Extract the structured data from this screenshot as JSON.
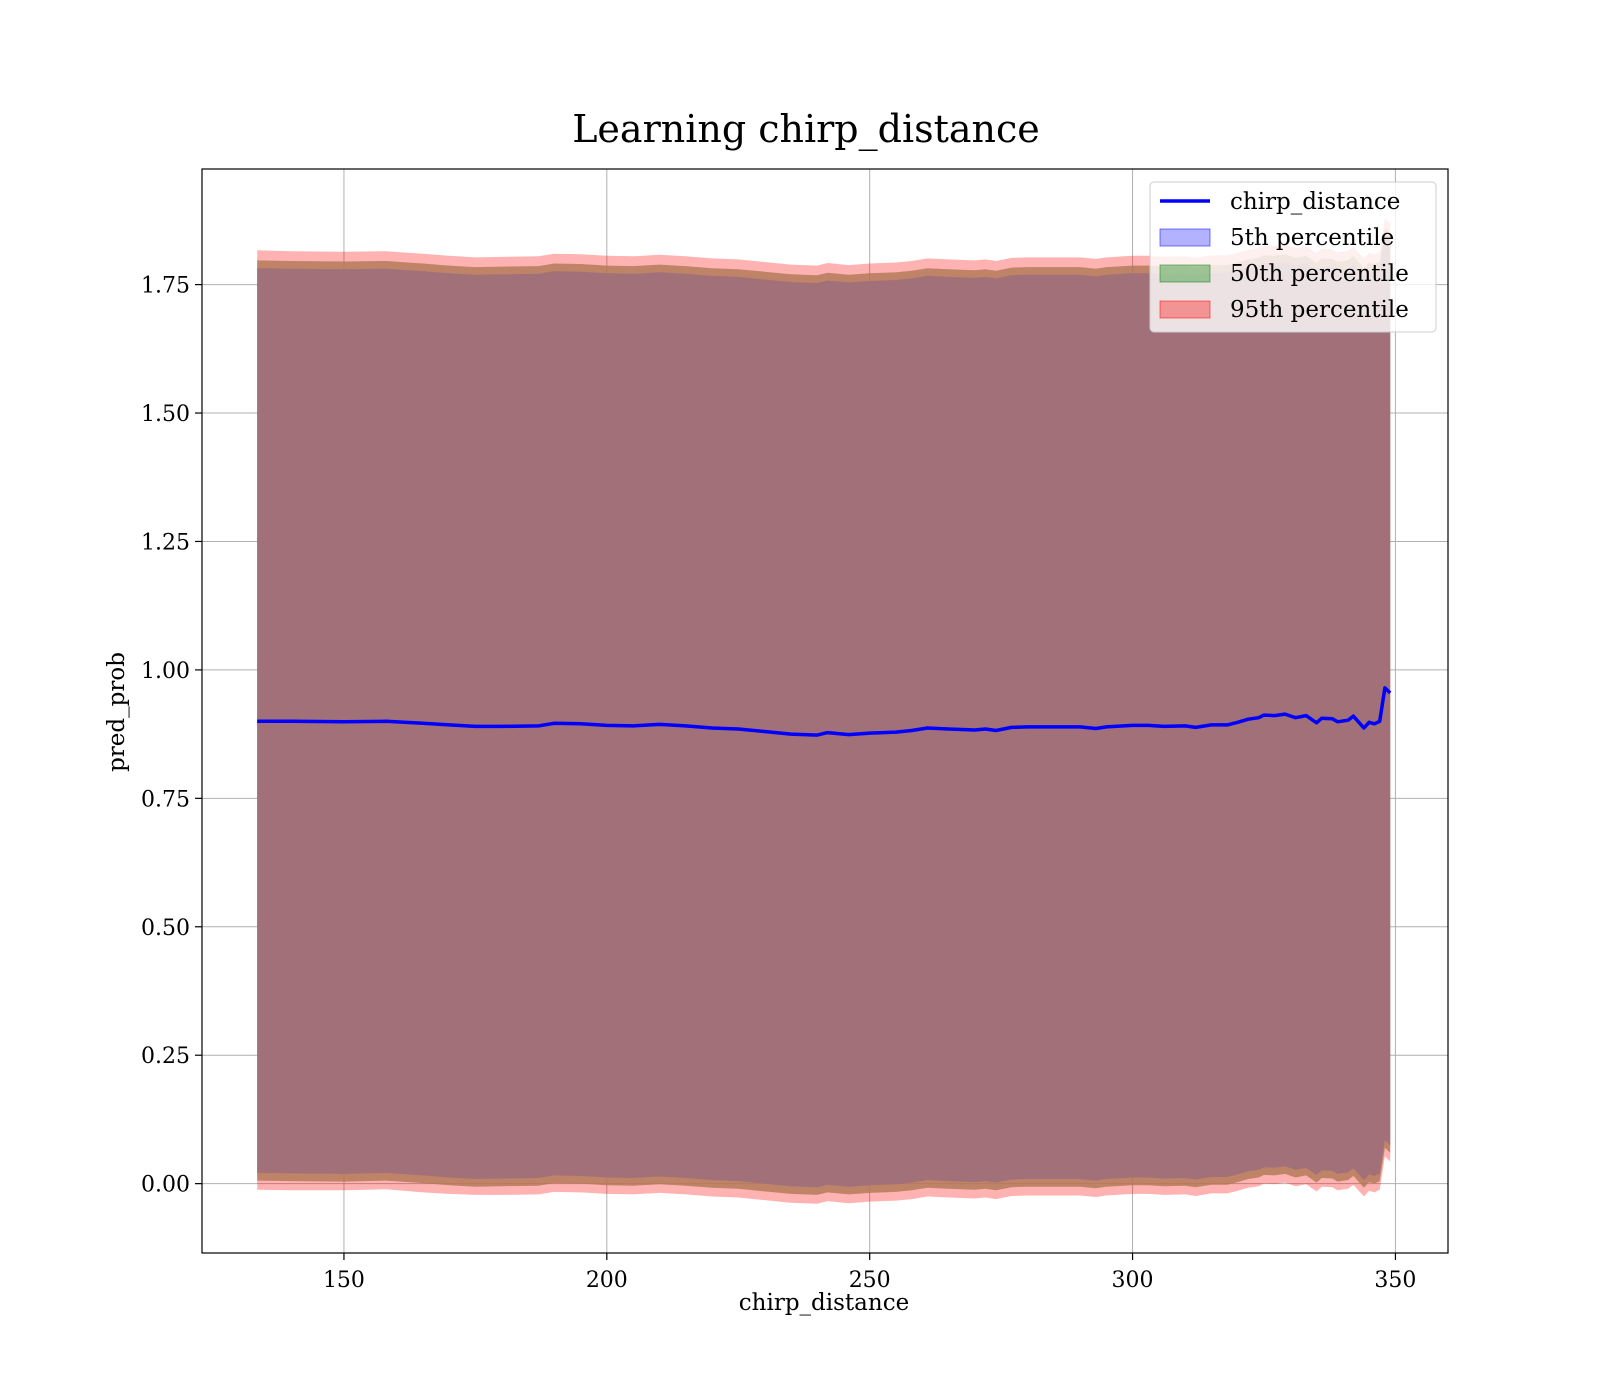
{
  "chart_data": {
    "type": "area",
    "title": "Learning chirp_distance",
    "xlabel": "chirp_distance",
    "ylabel": "pred_prob",
    "xlim": [
      123,
      360
    ],
    "ylim": [
      -0.135,
      1.975
    ],
    "xticks": [
      150,
      200,
      250,
      300,
      350
    ],
    "xtick_labels": [
      "150",
      "200",
      "250",
      "300",
      "350"
    ],
    "yticks": [
      0.0,
      0.25,
      0.5,
      0.75,
      1.0,
      1.25,
      1.5,
      1.75
    ],
    "ytick_labels": [
      "0.00",
      "0.25",
      "0.50",
      "0.75",
      "1.00",
      "1.25",
      "1.50",
      "1.75"
    ],
    "grid": true,
    "legend_position": "top-right",
    "legend": [
      "chirp_distance",
      "5th percentile",
      "50th percentile",
      "95th percentile"
    ],
    "colors": {
      "line": "#0000ff",
      "band_5": "#0000ff",
      "band_50": "#008000",
      "band_95": "#ff0000",
      "band_core": "#a17079"
    },
    "x": [
      133.5,
      140,
      150,
      158,
      165,
      170,
      175,
      180,
      187,
      190,
      195,
      200,
      205,
      210,
      215,
      220,
      225,
      230,
      235,
      240,
      242,
      246,
      250,
      255,
      258,
      261,
      265,
      270,
      272,
      274,
      277,
      280,
      285,
      290,
      293,
      295,
      300,
      303,
      306,
      310,
      312,
      315,
      318,
      320,
      322,
      324,
      325,
      327,
      329,
      331,
      333,
      335,
      336,
      338,
      339,
      341,
      342,
      344,
      345,
      346,
      347,
      348,
      349
    ],
    "series": [
      {
        "name": "chirp_distance",
        "values": [
          0.9,
          0.9,
          0.899,
          0.9,
          0.896,
          0.893,
          0.89,
          0.89,
          0.891,
          0.896,
          0.895,
          0.892,
          0.891,
          0.894,
          0.891,
          0.887,
          0.885,
          0.88,
          0.875,
          0.873,
          0.878,
          0.874,
          0.877,
          0.879,
          0.882,
          0.887,
          0.885,
          0.883,
          0.885,
          0.882,
          0.888,
          0.889,
          0.889,
          0.889,
          0.886,
          0.889,
          0.892,
          0.892,
          0.89,
          0.891,
          0.888,
          0.893,
          0.893,
          0.898,
          0.904,
          0.907,
          0.912,
          0.911,
          0.914,
          0.907,
          0.911,
          0.897,
          0.906,
          0.905,
          0.899,
          0.902,
          0.91,
          0.887,
          0.898,
          0.895,
          0.9,
          0.965,
          0.955
        ]
      }
    ],
    "bands": [
      {
        "name": "95th percentile",
        "upper": [
          1.817,
          1.815,
          1.814,
          1.815,
          1.81,
          1.806,
          1.803,
          1.804,
          1.805,
          1.81,
          1.809,
          1.806,
          1.805,
          1.808,
          1.805,
          1.801,
          1.799,
          1.794,
          1.789,
          1.787,
          1.792,
          1.788,
          1.791,
          1.793,
          1.796,
          1.801,
          1.799,
          1.797,
          1.799,
          1.796,
          1.802,
          1.803,
          1.803,
          1.803,
          1.8,
          1.803,
          1.806,
          1.806,
          1.804,
          1.805,
          1.802,
          1.807,
          1.807,
          1.812,
          1.818,
          1.821,
          1.826,
          1.825,
          1.828,
          1.821,
          1.825,
          1.811,
          1.82,
          1.819,
          1.813,
          1.816,
          1.824,
          1.801,
          1.812,
          1.809,
          1.814,
          1.879,
          1.869
        ],
        "lower": [
          -0.012,
          -0.013,
          -0.013,
          -0.011,
          -0.017,
          -0.02,
          -0.022,
          -0.022,
          -0.021,
          -0.016,
          -0.017,
          -0.02,
          -0.021,
          -0.018,
          -0.021,
          -0.025,
          -0.027,
          -0.032,
          -0.037,
          -0.039,
          -0.034,
          -0.038,
          -0.035,
          -0.033,
          -0.03,
          -0.025,
          -0.027,
          -0.029,
          -0.027,
          -0.03,
          -0.024,
          -0.023,
          -0.023,
          -0.023,
          -0.026,
          -0.023,
          -0.02,
          -0.02,
          -0.022,
          -0.021,
          -0.024,
          -0.019,
          -0.019,
          -0.014,
          -0.008,
          -0.005,
          0.0,
          -0.001,
          0.002,
          -0.005,
          -0.001,
          -0.015,
          -0.006,
          -0.007,
          -0.013,
          -0.01,
          -0.002,
          -0.025,
          -0.014,
          -0.017,
          -0.012,
          0.053,
          0.043
        ]
      },
      {
        "name": "50th percentile",
        "upper": [
          1.797,
          1.796,
          1.795,
          1.796,
          1.791,
          1.787,
          1.784,
          1.785,
          1.786,
          1.791,
          1.79,
          1.787,
          1.786,
          1.789,
          1.786,
          1.782,
          1.78,
          1.775,
          1.77,
          1.768,
          1.773,
          1.769,
          1.772,
          1.774,
          1.777,
          1.782,
          1.78,
          1.778,
          1.78,
          1.777,
          1.783,
          1.784,
          1.784,
          1.784,
          1.781,
          1.784,
          1.787,
          1.787,
          1.785,
          1.786,
          1.783,
          1.788,
          1.788,
          1.793,
          1.799,
          1.802,
          1.807,
          1.806,
          1.809,
          1.802,
          1.806,
          1.792,
          1.801,
          1.8,
          1.794,
          1.797,
          1.805,
          1.782,
          1.793,
          1.79,
          1.795,
          1.86,
          1.85
        ],
        "lower": [
          0.006,
          0.005,
          0.004,
          0.006,
          0.001,
          -0.003,
          -0.006,
          -0.005,
          -0.004,
          0.001,
          0.0,
          -0.003,
          -0.004,
          -0.001,
          -0.004,
          -0.008,
          -0.01,
          -0.015,
          -0.02,
          -0.022,
          -0.017,
          -0.021,
          -0.018,
          -0.016,
          -0.013,
          -0.008,
          -0.01,
          -0.012,
          -0.01,
          -0.013,
          -0.007,
          -0.006,
          -0.006,
          -0.006,
          -0.009,
          -0.006,
          -0.003,
          -0.003,
          -0.005,
          -0.004,
          -0.007,
          -0.002,
          -0.002,
          0.003,
          0.009,
          0.012,
          0.017,
          0.016,
          0.019,
          0.012,
          0.016,
          0.002,
          0.011,
          0.01,
          0.004,
          0.007,
          0.015,
          -0.008,
          0.003,
          0.0,
          0.005,
          0.07,
          0.06
        ]
      },
      {
        "name": "5th percentile",
        "upper": [
          1.782,
          1.781,
          1.78,
          1.781,
          1.776,
          1.772,
          1.769,
          1.77,
          1.771,
          1.776,
          1.775,
          1.772,
          1.771,
          1.774,
          1.771,
          1.767,
          1.765,
          1.76,
          1.755,
          1.753,
          1.758,
          1.754,
          1.757,
          1.759,
          1.762,
          1.767,
          1.765,
          1.763,
          1.765,
          1.762,
          1.768,
          1.769,
          1.769,
          1.769,
          1.766,
          1.769,
          1.772,
          1.772,
          1.77,
          1.771,
          1.768,
          1.773,
          1.773,
          1.778,
          1.784,
          1.787,
          1.792,
          1.791,
          1.794,
          1.787,
          1.791,
          1.777,
          1.786,
          1.785,
          1.779,
          1.782,
          1.79,
          1.767,
          1.778,
          1.775,
          1.78,
          1.845,
          1.835
        ],
        "lower": [
          0.021,
          0.02,
          0.019,
          0.021,
          0.016,
          0.012,
          0.009,
          0.01,
          0.011,
          0.016,
          0.015,
          0.012,
          0.011,
          0.014,
          0.011,
          0.007,
          0.005,
          0.0,
          -0.005,
          -0.007,
          -0.002,
          -0.006,
          -0.003,
          -0.001,
          0.002,
          0.007,
          0.005,
          0.003,
          0.005,
          0.002,
          0.008,
          0.009,
          0.009,
          0.009,
          0.006,
          0.009,
          0.012,
          0.012,
          0.01,
          0.011,
          0.008,
          0.013,
          0.013,
          0.018,
          0.024,
          0.027,
          0.032,
          0.031,
          0.034,
          0.027,
          0.031,
          0.017,
          0.026,
          0.025,
          0.019,
          0.022,
          0.03,
          0.007,
          0.018,
          0.015,
          0.02,
          0.085,
          0.075
        ]
      }
    ]
  }
}
